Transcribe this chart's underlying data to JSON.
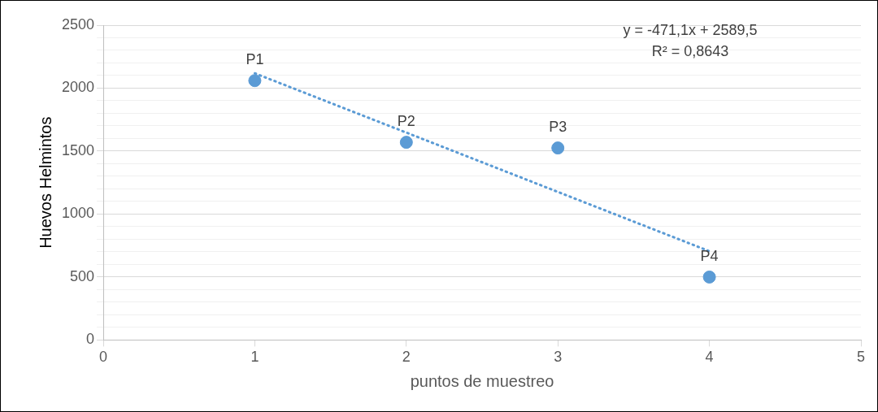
{
  "chart_data": {
    "type": "scatter",
    "xlabel": "puntos de muestreo",
    "ylabel": "Huevos Helmintos",
    "series": [
      {
        "color": "#5b9bd5",
        "x": [
          1,
          2,
          3,
          4
        ],
        "values": [
          2060,
          1570,
          1525,
          500
        ],
        "marker": "circle"
      },
      {
        "type": "line",
        "color": "#5b9bd5",
        "x": [
          1,
          4
        ],
        "values": [
          2118,
          705
        ],
        "marker": "none",
        "line_style": "dotted"
      }
    ],
    "xlim": [
      0,
      5
    ],
    "xticks": [
      0,
      1,
      2,
      3,
      4,
      5
    ],
    "ylim": [
      0,
      2500
    ],
    "yticks": [
      0,
      {
        "value": 100,
        "label": null
      },
      {
        "value": 200,
        "label": null
      },
      {
        "value": 300,
        "label": null
      },
      {
        "value": 400,
        "label": null
      },
      500,
      {
        "value": 600,
        "label": null
      },
      {
        "value": 700,
        "label": null
      },
      {
        "value": 800,
        "label": null
      },
      {
        "value": 900,
        "label": null
      },
      1000,
      {
        "value": 1100,
        "label": null
      },
      {
        "value": 1200,
        "label": null
      },
      {
        "value": 1300,
        "label": null
      },
      {
        "value": 1400,
        "label": null
      },
      1500,
      {
        "value": 1600,
        "label": null
      },
      {
        "value": 1700,
        "label": null
      },
      {
        "value": 1800,
        "label": null
      },
      {
        "value": 1900,
        "label": null
      },
      2000,
      {
        "value": 2100,
        "label": null
      },
      {
        "value": 2200,
        "label": null
      },
      {
        "value": 2300,
        "label": null
      },
      {
        "value": 2400,
        "label": null
      },
      2500
    ],
    "grid": "y",
    "legend": false,
    "annotations": [
      "y = -471,1x + 2589,5",
      "R² = 0,8643",
      {
        "text": "P1",
        "x": 1,
        "y": 2060
      },
      {
        "text": "P2",
        "x": 2,
        "y": 1570
      },
      {
        "text": "P3",
        "x": 3,
        "y": 1525
      },
      {
        "text": "P4",
        "x": 4,
        "y": 500
      }
    ]
  }
}
